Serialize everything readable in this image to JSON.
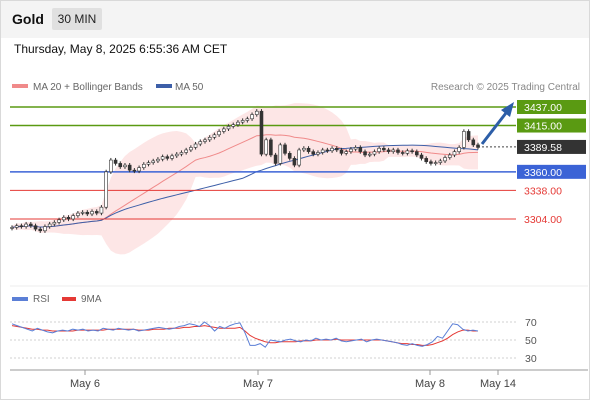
{
  "header": {
    "symbol": "Gold",
    "timeframe": "30 MIN"
  },
  "datetime": "Thursday, May 8, 2025 6:55:36 AM CET",
  "legend": {
    "ma_bb": "MA 20 + Bollinger Bands",
    "ma50": "MA 50",
    "credit": "Research © 2025 Trading Central"
  },
  "rsi_legend": {
    "rsi": "RSI",
    "ma": "9MA"
  },
  "colors": {
    "resistance": "#5a9a12",
    "support": "#3b63d6",
    "target": "#e53935",
    "ma20": "#f08a8a",
    "ma50": "#3d5fa8",
    "bands": "#fde3e3",
    "current": "#333333",
    "arrow": "#2c5ea8"
  },
  "levels": {
    "r2": {
      "label": "3437.00",
      "value": 3437
    },
    "r1": {
      "label": "3415.00",
      "value": 3415
    },
    "current": {
      "label": "3389.58",
      "value": 3389.58
    },
    "s1": {
      "label": "3360.00",
      "value": 3360
    },
    "t1": {
      "label": "3338.00",
      "value": 3338
    },
    "t2": {
      "label": "3304.00",
      "value": 3304
    }
  },
  "x_labels": [
    "May 6",
    "May 7",
    "May 8",
    "May 14"
  ],
  "rsi_ticks": [
    "70",
    "50",
    "30"
  ],
  "chart_data": {
    "type": "candlestick",
    "price_close": [
      3294,
      3296,
      3295,
      3298,
      3296,
      3292,
      3290,
      3295,
      3298,
      3300,
      3303,
      3306,
      3304,
      3308,
      3311,
      3312,
      3310,
      3313,
      3311,
      3318,
      3360,
      3374,
      3370,
      3366,
      3368,
      3362,
      3361,
      3365,
      3369,
      3371,
      3373,
      3375,
      3378,
      3376,
      3379,
      3381,
      3383,
      3386,
      3389,
      3393,
      3396,
      3398,
      3401,
      3404,
      3408,
      3411,
      3414,
      3416,
      3419,
      3421,
      3423,
      3428,
      3432,
      3381,
      3398,
      3380,
      3370,
      3392,
      3382,
      3376,
      3368,
      3386,
      3388,
      3384,
      3381,
      3383,
      3386,
      3385,
      3388,
      3386,
      3382,
      3384,
      3387,
      3389,
      3384,
      3380,
      3381,
      3384,
      3388,
      3386,
      3384,
      3386,
      3383,
      3382,
      3385,
      3384,
      3380,
      3376,
      3372,
      3370,
      3371,
      3373,
      3377,
      3380,
      3384,
      3389,
      3408,
      3398,
      3392,
      3389
    ],
    "rsi": [
      68,
      66,
      64,
      62,
      60,
      63,
      61,
      59,
      58,
      60,
      61,
      60,
      62,
      61,
      62,
      60,
      61,
      60,
      63,
      62,
      61,
      63,
      62,
      61,
      62,
      60,
      61,
      62,
      63,
      64,
      63,
      62,
      63,
      65,
      66,
      68,
      67,
      65,
      70,
      66,
      60,
      65,
      63,
      66,
      68,
      69,
      58,
      44,
      44,
      46,
      42,
      50,
      49,
      48,
      50,
      51,
      49,
      48,
      50,
      49,
      52,
      50,
      51,
      50,
      52,
      49,
      48,
      49,
      50,
      51,
      48,
      50,
      51,
      50,
      49,
      48,
      47,
      45,
      44,
      46,
      44,
      43,
      45,
      48,
      54,
      52,
      60,
      68,
      67,
      62,
      60,
      61,
      60
    ],
    "rsi_ma": [
      66,
      65,
      64,
      63,
      62,
      62,
      61,
      61,
      60,
      60,
      60,
      60,
      60,
      61,
      61,
      61,
      61,
      61,
      61,
      62,
      62,
      62,
      62,
      62,
      62,
      61,
      61,
      61,
      62,
      62,
      62,
      63,
      63,
      63,
      64,
      64,
      65,
      65,
      66,
      65,
      64,
      63,
      63,
      63,
      63,
      64,
      60,
      55,
      52,
      50,
      48,
      47,
      47,
      48,
      48,
      48,
      48,
      49,
      49,
      49,
      50,
      50,
      50,
      50,
      51,
      50,
      50,
      50,
      50,
      50,
      50,
      50,
      50,
      50,
      49,
      48,
      47,
      46,
      46,
      45,
      45,
      44,
      44,
      45,
      47,
      49,
      52,
      56,
      59,
      61,
      61,
      60,
      60
    ],
    "x_ticks": [
      "May 6",
      "May 7",
      "May 8",
      "May 14"
    ],
    "y_levels": [
      3437,
      3415,
      3389.58,
      3360,
      3338,
      3304
    ],
    "rsi_ylim": [
      30,
      70
    ],
    "legend": [
      "MA 20 + Bollinger Bands",
      "MA 50",
      "RSI",
      "9MA"
    ],
    "legend_position": "top-left",
    "grid": false
  }
}
